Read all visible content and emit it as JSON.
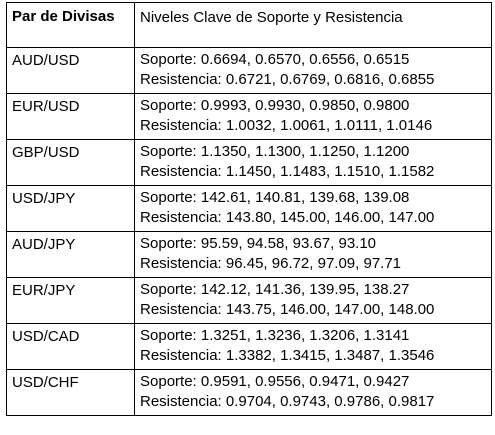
{
  "header": {
    "pair_label": "Par de Divisas",
    "levels_label": "Niveles Clave de Soporte y Resistencia"
  },
  "rows": [
    {
      "pair": "AUD/USD",
      "support": "Soporte: 0.6694, 0.6570, 0.6556, 0.6515",
      "resistance": "Resistencia: 0.6721, 0.6769, 0.6816, 0.6855"
    },
    {
      "pair": "EUR/USD",
      "support": "Soporte: 0.9993, 0.9930, 0.9850, 0.9800",
      "resistance": "Resistencia: 1.0032, 1.0061, 1.0111, 1.0146"
    },
    {
      "pair": "GBP/USD",
      "support": "Soporte: 1.1350, 1.1300, 1.1250, 1.1200",
      "resistance": "Resistencia: 1.1450, 1.1483, 1.1510, 1.1582"
    },
    {
      "pair": "USD/JPY",
      "support": "Soporte: 142.61, 140.81, 139.68, 139.08",
      "resistance": "Resistencia: 143.80, 145.00, 146.00, 147.00"
    },
    {
      "pair": "AUD/JPY",
      "support": "Soporte: 95.59, 94.58, 93.67, 93.10",
      "resistance": "Resistencia: 96.45, 96.72, 97.09, 97.71"
    },
    {
      "pair": "EUR/JPY",
      "support": "Soporte: 142.12, 141.36, 139.95, 138.27",
      "resistance": "Resistencia: 143.75, 146.00, 147.00, 148.00"
    },
    {
      "pair": "USD/CAD",
      "support": "Soporte: 1.3251, 1.3236, 1.3206, 1.3141",
      "resistance": "Resistencia: 1.3382, 1.3415, 1.3487, 1.3546"
    },
    {
      "pair": "USD/CHF",
      "support": "Soporte: 0.9591, 0.9556, 0.9471, 0.9427",
      "resistance": "Resistencia: 0.9704, 0.9743, 0.9786, 0.9817"
    }
  ]
}
